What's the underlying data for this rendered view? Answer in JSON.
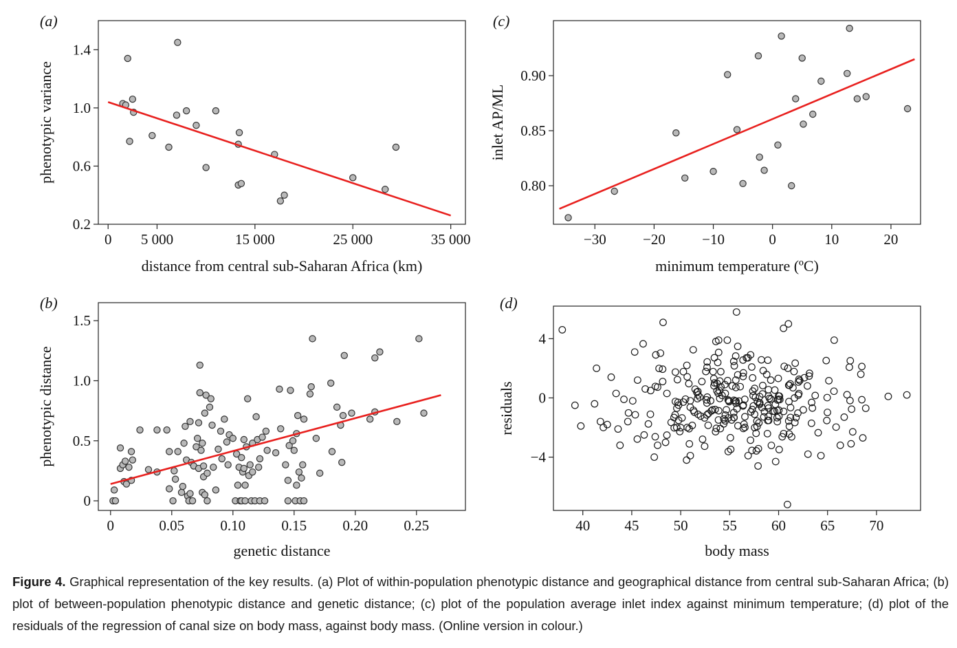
{
  "caption": {
    "lead": "Figure 4.",
    "text": " Graphical representation of the key results. (a) Plot of within-population phenotypic distance and geographical distance from central sub-Saharan Africa; (b) plot of between-population phenotypic distance and genetic distance; (c) plot of the population average inlet index against minimum temperature; (d) plot of the residuals of the regression of canal size on body mass, against body mass. (Online version in colour.)"
  },
  "colors": {
    "regression_line": "#e8201e",
    "point_fill": "#b9b9b9",
    "point_stroke": "#333333",
    "axis": "#222222"
  },
  "chart_data": [
    {
      "id": "a",
      "panel_label": "(a)",
      "type": "scatter",
      "xlabel": "distance from central sub-Saharan Africa (km)",
      "ylabel": "phenotypic variance",
      "xlim": [
        -1000,
        36500
      ],
      "ylim": [
        0.2,
        1.6
      ],
      "xticks": [
        0,
        5000,
        15000,
        25000,
        35000
      ],
      "xtick_labels": [
        "0",
        "5 000",
        "15 000",
        "25 000",
        "35 000"
      ],
      "yticks": [
        0.2,
        0.6,
        1.0,
        1.4
      ],
      "ytick_labels": [
        "0.2",
        "0.6",
        "1.0",
        "1.4"
      ],
      "marker": "filled",
      "points": [
        [
          2000,
          1.34
        ],
        [
          2500,
          1.06
        ],
        [
          1500,
          1.03
        ],
        [
          1800,
          1.02
        ],
        [
          2600,
          0.97
        ],
        [
          2200,
          0.77
        ],
        [
          4500,
          0.81
        ],
        [
          6200,
          0.73
        ],
        [
          7000,
          0.95
        ],
        [
          7100,
          1.45
        ],
        [
          8000,
          0.98
        ],
        [
          9000,
          0.88
        ],
        [
          10000,
          0.59
        ],
        [
          11000,
          0.98
        ],
        [
          13400,
          0.83
        ],
        [
          13300,
          0.75
        ],
        [
          13300,
          0.47
        ],
        [
          13600,
          0.48
        ],
        [
          17000,
          0.68
        ],
        [
          17600,
          0.36
        ],
        [
          18000,
          0.4
        ],
        [
          25000,
          0.52
        ],
        [
          28300,
          0.44
        ],
        [
          29400,
          0.73
        ]
      ],
      "fit": [
        [
          0,
          1.04
        ],
        [
          35000,
          0.26
        ]
      ]
    },
    {
      "id": "b",
      "panel_label": "(b)",
      "type": "scatter",
      "xlabel": "genetic distance",
      "ylabel": "phenotypic distance",
      "xlim": [
        -0.01,
        0.29
      ],
      "ylim": [
        -0.08,
        1.65
      ],
      "xticks": [
        0,
        0.05,
        0.1,
        0.15,
        0.2,
        0.25
      ],
      "xtick_labels": [
        "0",
        "0.05",
        "0.10",
        "0.15",
        "0.20",
        "0.25"
      ],
      "yticks": [
        0,
        0.5,
        1.0,
        1.5
      ],
      "ytick_labels": [
        "0",
        "0.5",
        "1.0",
        "1.5"
      ],
      "marker": "filled",
      "points": [
        [
          0.002,
          0.0
        ],
        [
          0.004,
          0.0
        ],
        [
          0.003,
          0.09
        ],
        [
          0.008,
          0.44
        ],
        [
          0.008,
          0.27
        ],
        [
          0.01,
          0.3
        ],
        [
          0.011,
          0.16
        ],
        [
          0.012,
          0.33
        ],
        [
          0.013,
          0.14
        ],
        [
          0.015,
          0.28
        ],
        [
          0.017,
          0.41
        ],
        [
          0.018,
          0.34
        ],
        [
          0.017,
          0.17
        ],
        [
          0.024,
          0.59
        ],
        [
          0.031,
          0.26
        ],
        [
          0.038,
          0.24
        ],
        [
          0.038,
          0.59
        ],
        [
          0.046,
          0.59
        ],
        [
          0.048,
          0.41
        ],
        [
          0.048,
          0.1
        ],
        [
          0.051,
          0.0
        ],
        [
          0.052,
          0.25
        ],
        [
          0.053,
          0.18
        ],
        [
          0.055,
          0.41
        ],
        [
          0.058,
          0.07
        ],
        [
          0.059,
          0.12
        ],
        [
          0.06,
          0.48
        ],
        [
          0.061,
          0.62
        ],
        [
          0.062,
          0.34
        ],
        [
          0.063,
          0.04
        ],
        [
          0.064,
          0.0
        ],
        [
          0.065,
          0.06
        ],
        [
          0.065,
          0.66
        ],
        [
          0.066,
          0.32
        ],
        [
          0.067,
          0.0
        ],
        [
          0.068,
          0.29
        ],
        [
          0.07,
          0.45
        ],
        [
          0.071,
          0.52
        ],
        [
          0.072,
          0.65
        ],
        [
          0.072,
          0.27
        ],
        [
          0.073,
          0.9
        ],
        [
          0.073,
          1.13
        ],
        [
          0.074,
          0.42
        ],
        [
          0.075,
          0.48
        ],
        [
          0.075,
          0.07
        ],
        [
          0.076,
          0.2
        ],
        [
          0.076,
          0.29
        ],
        [
          0.077,
          0.05
        ],
        [
          0.077,
          0.73
        ],
        [
          0.078,
          0.88
        ],
        [
          0.079,
          0.23
        ],
        [
          0.079,
          0.0
        ],
        [
          0.081,
          0.78
        ],
        [
          0.082,
          0.85
        ],
        [
          0.083,
          0.63
        ],
        [
          0.084,
          0.28
        ],
        [
          0.086,
          0.09
        ],
        [
          0.088,
          0.43
        ],
        [
          0.09,
          0.58
        ],
        [
          0.091,
          0.35
        ],
        [
          0.093,
          0.68
        ],
        [
          0.095,
          0.49
        ],
        [
          0.096,
          0.3
        ],
        [
          0.097,
          0.55
        ],
        [
          0.1,
          0.52
        ],
        [
          0.102,
          0.0
        ],
        [
          0.103,
          0.39
        ],
        [
          0.104,
          0.13
        ],
        [
          0.105,
          0.28
        ],
        [
          0.106,
          0.0
        ],
        [
          0.107,
          0.36
        ],
        [
          0.107,
          0.0
        ],
        [
          0.108,
          0.24
        ],
        [
          0.109,
          0.27
        ],
        [
          0.109,
          0.51
        ],
        [
          0.11,
          0.13
        ],
        [
          0.11,
          0.0
        ],
        [
          0.111,
          0.45
        ],
        [
          0.112,
          0.85
        ],
        [
          0.113,
          0.21
        ],
        [
          0.114,
          0.3
        ],
        [
          0.115,
          0.0
        ],
        [
          0.116,
          0.48
        ],
        [
          0.116,
          0.24
        ],
        [
          0.118,
          0.0
        ],
        [
          0.119,
          0.7
        ],
        [
          0.12,
          0.51
        ],
        [
          0.121,
          0.28
        ],
        [
          0.122,
          0.0
        ],
        [
          0.122,
          0.35
        ],
        [
          0.124,
          0.53
        ],
        [
          0.126,
          0.0
        ],
        [
          0.127,
          0.58
        ],
        [
          0.128,
          0.42
        ],
        [
          0.135,
          0.4
        ],
        [
          0.138,
          0.93
        ],
        [
          0.139,
          0.6
        ],
        [
          0.143,
          0.3
        ],
        [
          0.145,
          0.0
        ],
        [
          0.145,
          0.17
        ],
        [
          0.146,
          0.46
        ],
        [
          0.147,
          0.92
        ],
        [
          0.149,
          0.5
        ],
        [
          0.15,
          0.42
        ],
        [
          0.151,
          0.0
        ],
        [
          0.152,
          0.13
        ],
        [
          0.152,
          0.56
        ],
        [
          0.153,
          0.71
        ],
        [
          0.154,
          0.24
        ],
        [
          0.155,
          0.0
        ],
        [
          0.156,
          0.19
        ],
        [
          0.157,
          0.3
        ],
        [
          0.158,
          0.0
        ],
        [
          0.158,
          0.68
        ],
        [
          0.163,
          0.89
        ],
        [
          0.164,
          0.95
        ],
        [
          0.165,
          1.35
        ],
        [
          0.168,
          0.52
        ],
        [
          0.171,
          0.23
        ],
        [
          0.18,
          0.98
        ],
        [
          0.181,
          0.41
        ],
        [
          0.185,
          0.78
        ],
        [
          0.188,
          0.63
        ],
        [
          0.189,
          0.32
        ],
        [
          0.19,
          0.71
        ],
        [
          0.191,
          1.21
        ],
        [
          0.197,
          0.73
        ],
        [
          0.212,
          0.68
        ],
        [
          0.216,
          1.19
        ],
        [
          0.216,
          0.74
        ],
        [
          0.22,
          1.24
        ],
        [
          0.234,
          0.66
        ],
        [
          0.252,
          1.35
        ],
        [
          0.256,
          0.73
        ]
      ],
      "fit": [
        [
          0,
          0.14
        ],
        [
          0.27,
          0.88
        ]
      ]
    },
    {
      "id": "c",
      "panel_label": "(c)",
      "type": "scatter",
      "xlabel": "minimum temperature (ºC)",
      "ylabel": "inlet AP/ML",
      "xlim": [
        -37,
        25
      ],
      "ylim": [
        0.765,
        0.95
      ],
      "xticks": [
        -30,
        -20,
        -10,
        0,
        10,
        20
      ],
      "xtick_labels": [
        "−30",
        "−20",
        "−10",
        "0",
        "10",
        "20"
      ],
      "yticks": [
        0.8,
        0.85,
        0.9
      ],
      "ytick_labels": [
        "0.80",
        "0.85",
        "0.90"
      ],
      "marker": "filled",
      "points": [
        [
          -34.5,
          0.771
        ],
        [
          -26.7,
          0.795
        ],
        [
          -16.3,
          0.848
        ],
        [
          -14.8,
          0.807
        ],
        [
          -10,
          0.813
        ],
        [
          -7.6,
          0.901
        ],
        [
          -6,
          0.851
        ],
        [
          -5,
          0.802
        ],
        [
          -2.4,
          0.918
        ],
        [
          -2.2,
          0.826
        ],
        [
          -1.4,
          0.814
        ],
        [
          0.9,
          0.837
        ],
        [
          1.5,
          0.936
        ],
        [
          3.2,
          0.8
        ],
        [
          3.9,
          0.879
        ],
        [
          5,
          0.916
        ],
        [
          5.2,
          0.856
        ],
        [
          6.8,
          0.865
        ],
        [
          8.2,
          0.895
        ],
        [
          12.6,
          0.902
        ],
        [
          13,
          0.943
        ],
        [
          14.3,
          0.879
        ],
        [
          15.8,
          0.881
        ],
        [
          22.8,
          0.87
        ]
      ],
      "fit": [
        [
          -36,
          0.779
        ],
        [
          24,
          0.915
        ]
      ]
    },
    {
      "id": "d",
      "panel_label": "(d)",
      "type": "scatter",
      "xlabel": "body mass",
      "ylabel": "residuals",
      "xlim": [
        37,
        74.5
      ],
      "ylim": [
        -7.6,
        6.2
      ],
      "xticks": [
        40,
        45,
        50,
        55,
        60,
        65,
        70
      ],
      "xtick_labels": [
        "40",
        "45",
        "50",
        "55",
        "60",
        "65",
        "70"
      ],
      "yticks": [
        -4,
        0,
        4
      ],
      "ytick_labels": [
        "−4",
        "0",
        "4"
      ],
      "marker": "open",
      "n_points": 300,
      "x_mean": 56,
      "x_sd": 5.5,
      "resid_sd": 1.8,
      "points": [
        [
          37.9,
          4.6
        ],
        [
          39.2,
          -0.5
        ],
        [
          39.8,
          -1.9
        ],
        [
          41.2,
          -0.4
        ],
        [
          41.4,
          2.0
        ],
        [
          41.8,
          -1.6
        ],
        [
          42.1,
          -2.0
        ],
        [
          42.5,
          -1.8
        ],
        [
          42.9,
          1.4
        ],
        [
          43.4,
          0.3
        ],
        [
          43.6,
          -2.1
        ],
        [
          43.8,
          -3.2
        ],
        [
          44.2,
          -0.1
        ],
        [
          44.6,
          -1.6
        ],
        [
          45.3,
          3.1
        ],
        [
          45.1,
          -0.2
        ],
        [
          48.2,
          5.1
        ],
        [
          47.3,
          -4.0
        ],
        [
          50.6,
          -4.2
        ],
        [
          55.7,
          5.8
        ],
        [
          57.9,
          -4.6
        ],
        [
          60.9,
          -7.2
        ],
        [
          61.0,
          5.0
        ],
        [
          60.5,
          4.7
        ],
        [
          59.7,
          -4.3
        ],
        [
          63.0,
          -3.8
        ],
        [
          66.3,
          -3.2
        ],
        [
          67.4,
          -3.1
        ],
        [
          68.6,
          -2.7
        ],
        [
          68.9,
          -0.7
        ],
        [
          71.2,
          0.1
        ],
        [
          73.1,
          0.2
        ],
        [
          68.4,
          1.6
        ],
        [
          66.7,
          -1.3
        ]
      ]
    }
  ]
}
